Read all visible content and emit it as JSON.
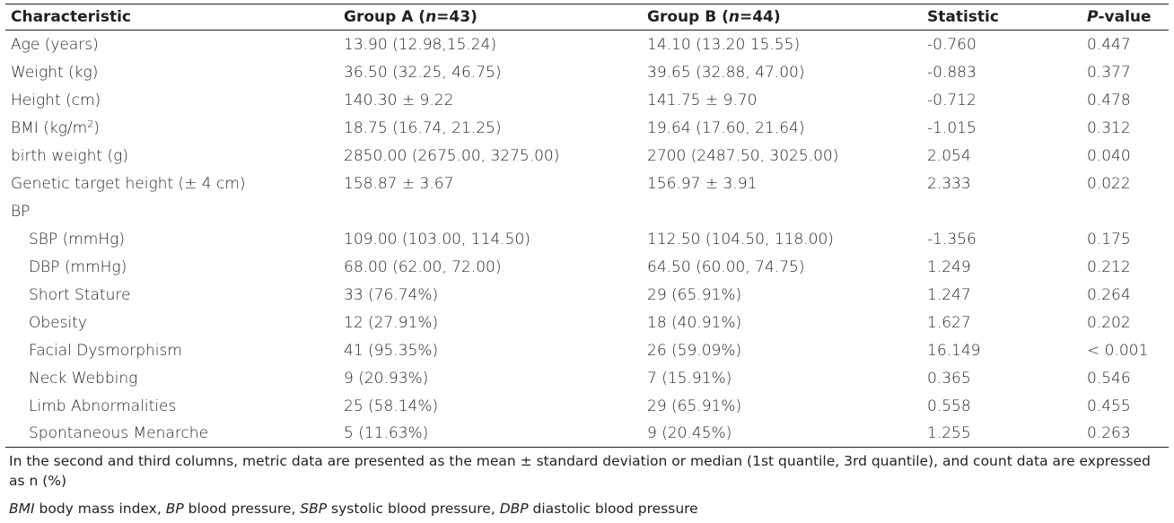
{
  "table": {
    "headers": {
      "characteristic": "Characteristic",
      "group_a_prefix": "Group A (",
      "group_a_n": "n",
      "group_a_suffix": "=43)",
      "group_b_prefix": "Group B (",
      "group_b_n": "n",
      "group_b_suffix": "=44)",
      "statistic": "Statistic",
      "p_italic": "P",
      "p_suffix": "-value"
    },
    "rows": [
      {
        "label": "Age (years)",
        "a": "13.90 (12.98,15.24)",
        "b": "14.10 (13.20 15.55)",
        "stat": "-0.760",
        "p": "0.447"
      },
      {
        "label": "Weight (kg)",
        "a": "36.50 (32.25, 46.75)",
        "b": "39.65 (32.88, 47.00)",
        "stat": "-0.883",
        "p": "0.377"
      },
      {
        "label": "Height (cm)",
        "a": "140.30 ± 9.22",
        "b": "141.75 ± 9.70",
        "stat": "-0.712",
        "p": "0.478"
      },
      {
        "label_prefix": "BMI (kg/m",
        "label_sup": "2",
        "label_suffix": ")",
        "a": "18.75 (16.74, 21.25)",
        "b": "19.64 (17.60, 21.64)",
        "stat": "-1.015",
        "p": "0.312"
      },
      {
        "label": "birth weight (g)",
        "a": "2850.00 (2675.00, 3275.00)",
        "b": "2700 (2487.50, 3025.00)",
        "stat": "2.054",
        "p": "0.040"
      },
      {
        "label": "Genetic target height (± 4 cm)",
        "a": "158.87 ± 3.67",
        "b": "156.97 ± 3.91",
        "stat": "2.333",
        "p": "0.022"
      },
      {
        "label": "BP",
        "a": "",
        "b": "",
        "stat": "",
        "p": ""
      },
      {
        "label": "SBP (mmHg)",
        "a": "109.00 (103.00, 114.50)",
        "b": "112.50 (104.50, 118.00)",
        "stat": "-1.356",
        "p": "0.175"
      },
      {
        "label": "DBP (mmHg)",
        "a": "68.00 (62.00, 72.00)",
        "b": "64.50 (60.00, 74.75)",
        "stat": "1.249",
        "p": "0.212"
      },
      {
        "label": "Short Stature",
        "a": "33 (76.74%)",
        "b": "29 (65.91%)",
        "stat": "1.247",
        "p": "0.264"
      },
      {
        "label": "Obesity",
        "a": "12 (27.91%)",
        "b": "18 (40.91%)",
        "stat": "1.627",
        "p": "0.202"
      },
      {
        "label": "Facial Dysmorphism",
        "a": "41 (95.35%)",
        "b": "26 (59.09%)",
        "stat": "16.149",
        "p": "< 0.001"
      },
      {
        "label": "Neck Webbing",
        "a": "9 (20.93%)",
        "b": "7 (15.91%)",
        "stat": "0.365",
        "p": "0.546"
      },
      {
        "label": "Limb Abnormalities",
        "a": "25 (58.14%)",
        "b": "29 (65.91%)",
        "stat": "0.558",
        "p": "0.455"
      },
      {
        "label": "Spontaneous Menarche",
        "a": "5 (11.63%)",
        "b": "9 (20.45%)",
        "stat": "1.255",
        "p": "0.263"
      }
    ]
  },
  "footnotes": {
    "note": "In the second and third columns, metric data are presented as the mean ± standard deviation or median (1st quantile, 3rd quantile), and count data are expressed as n (%)",
    "abbr": [
      {
        "term": "BMI",
        "def": " body mass index, "
      },
      {
        "term": "BP",
        "def": " blood pressure, "
      },
      {
        "term": "SBP",
        "def": " systolic blood pressure, "
      },
      {
        "term": "DBP",
        "def": " diastolic blood pressure"
      }
    ]
  }
}
